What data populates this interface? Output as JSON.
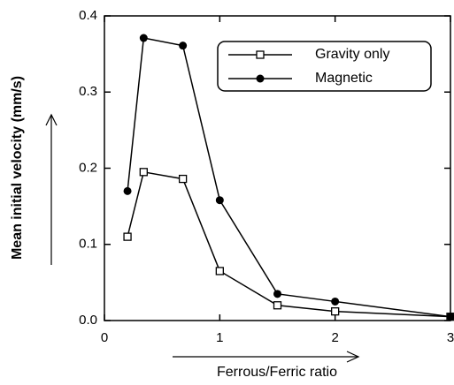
{
  "chart_data": {
    "type": "line",
    "xlabel": "Ferrous/Ferric  ratio",
    "ylabel": "Mean initial velocity (mm/s)",
    "x": [
      0.2,
      0.34,
      0.68,
      1.0,
      1.5,
      2.0,
      3.0
    ],
    "series": [
      {
        "name": "Gravity  only",
        "color": "#000000",
        "marker": "square",
        "values": [
          0.11,
          0.195,
          0.186,
          0.065,
          0.02,
          0.012,
          0.005
        ]
      },
      {
        "name": "Magnetic",
        "color": "#000000",
        "marker": "circle",
        "values": [
          0.17,
          0.371,
          0.361,
          0.158,
          0.035,
          0.025,
          0.005
        ]
      }
    ],
    "xlim": [
      0,
      3
    ],
    "xticks": [
      0,
      1,
      2,
      3
    ],
    "ylim": [
      0,
      0.4
    ],
    "yticks": [
      {
        "value": 0,
        "label": "0.0"
      },
      0.1,
      0.2,
      0.3,
      0.4
    ],
    "legend": "upper right"
  }
}
